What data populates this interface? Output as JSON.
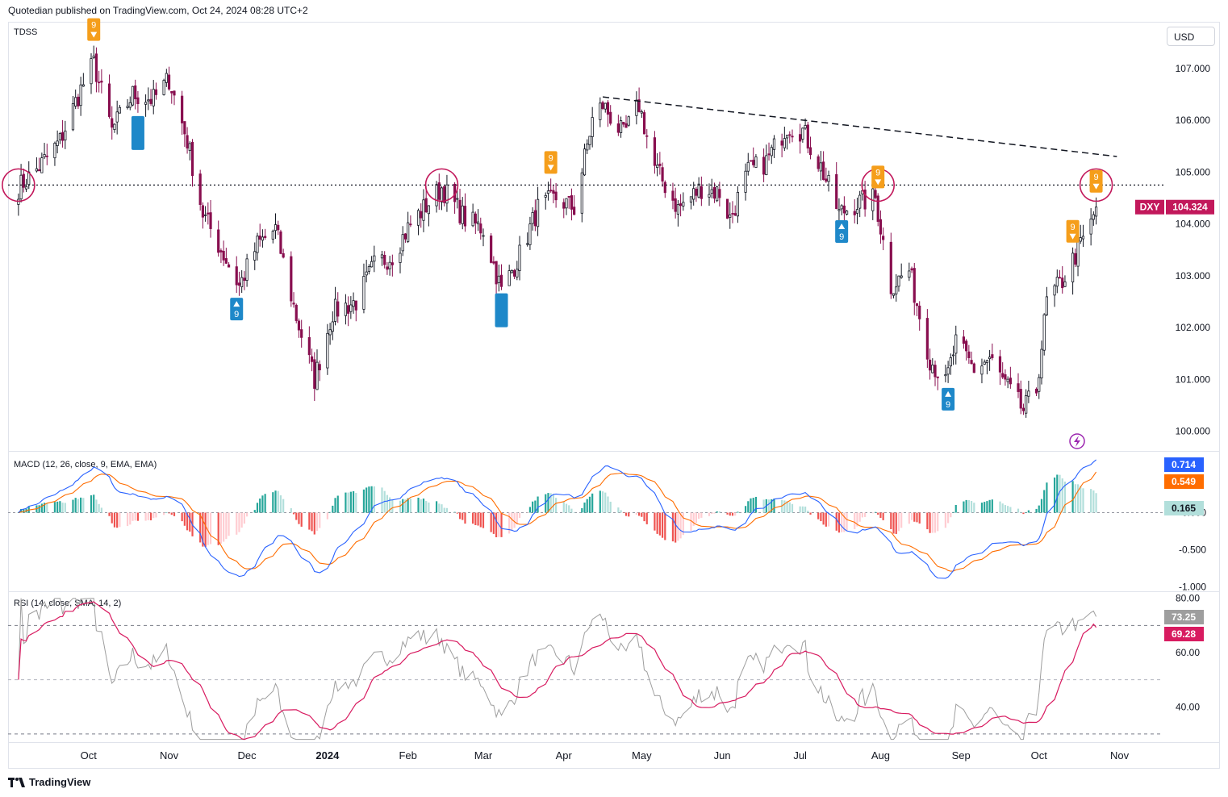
{
  "header": {
    "text": "Quotedian published on TradingView.com, Oct 24, 2024 08:28 UTC+2"
  },
  "currency_button": "USD",
  "footer": {
    "brand": "TradingView",
    "logo_text": "TV"
  },
  "colors": {
    "up": "#131722",
    "down": "#880e4f",
    "blue_tdss": "#1e88c9",
    "orange_tdss": "#f59e1b",
    "macd": "#2962ff",
    "signal": "#ff6d00",
    "rsi": "#9e9e9e",
    "rsi_ma": "#d81b60",
    "circle": "#c2185b",
    "hist_up": "#26a69a",
    "hist_up_light": "#b2dfdb",
    "hist_dn": "#ef5350",
    "hist_dn_light": "#ffcdd2"
  },
  "chart_data": [
    {
      "type": "candlestick",
      "title": "TDSS",
      "symbol": "DXY",
      "last_price": "104.324",
      "y_ticks": [
        "107.000",
        "106.000",
        "105.000",
        "104.000",
        "103.000",
        "102.000",
        "101.000",
        "100.000"
      ],
      "ylim": [
        99.65,
        107.9
      ],
      "horizontal_level": 104.75,
      "trendline": {
        "from": [
          "2024-04-16",
          106.45
        ],
        "to": [
          "2024-10-31",
          105.3
        ]
      },
      "x_ticks": [
        "Oct",
        "Nov",
        "Dec",
        "2024",
        "Feb",
        "Mar",
        "Apr",
        "May",
        "Jun",
        "Jul",
        "Aug",
        "Sep",
        "Oct",
        "Nov"
      ],
      "x_tick_dates": [
        "2023-10-01",
        "2023-11-01",
        "2023-12-01",
        "2024-01-01",
        "2024-02-01",
        "2024-03-01",
        "2024-04-01",
        "2024-05-01",
        "2024-06-01",
        "2024-07-01",
        "2024-08-01",
        "2024-09-01",
        "2024-10-01",
        "2024-11-01"
      ],
      "anchors": [
        [
          "2023-09-04",
          104.7
        ],
        [
          "2023-09-12",
          105.1
        ],
        [
          "2023-09-20",
          105.6
        ],
        [
          "2023-09-28",
          106.6
        ],
        [
          "2023-10-03",
          107.1
        ],
        [
          "2023-10-10",
          105.8
        ],
        [
          "2023-10-18",
          106.5
        ],
        [
          "2023-10-26",
          106.4
        ],
        [
          "2023-11-01",
          106.8
        ],
        [
          "2023-11-08",
          105.6
        ],
        [
          "2023-11-14",
          104.2
        ],
        [
          "2023-11-21",
          103.5
        ],
        [
          "2023-11-28",
          102.8
        ],
        [
          "2023-12-05",
          103.6
        ],
        [
          "2023-12-12",
          103.9
        ],
        [
          "2023-12-20",
          102.2
        ],
        [
          "2023-12-27",
          101.0
        ],
        [
          "2024-01-03",
          102.3
        ],
        [
          "2024-01-12",
          102.5
        ],
        [
          "2024-01-19",
          103.2
        ],
        [
          "2024-01-26",
          103.4
        ],
        [
          "2024-02-02",
          104.0
        ],
        [
          "2024-02-14",
          104.7
        ],
        [
          "2024-02-23",
          104.1
        ],
        [
          "2024-03-01",
          103.9
        ],
        [
          "2024-03-08",
          102.7
        ],
        [
          "2024-03-15",
          103.4
        ],
        [
          "2024-03-22",
          104.3
        ],
        [
          "2024-03-29",
          104.5
        ],
        [
          "2024-04-05",
          104.3
        ],
        [
          "2024-04-12",
          106.0
        ],
        [
          "2024-04-16",
          106.3
        ],
        [
          "2024-04-24",
          105.7
        ],
        [
          "2024-04-30",
          106.3
        ],
        [
          "2024-05-06",
          105.1
        ],
        [
          "2024-05-15",
          104.3
        ],
        [
          "2024-05-24",
          104.7
        ],
        [
          "2024-05-31",
          104.6
        ],
        [
          "2024-06-04",
          104.1
        ],
        [
          "2024-06-11",
          105.0
        ],
        [
          "2024-06-18",
          105.2
        ],
        [
          "2024-06-26",
          105.9
        ],
        [
          "2024-07-02",
          105.8
        ],
        [
          "2024-07-09",
          105.1
        ],
        [
          "2024-07-16",
          104.2
        ],
        [
          "2024-07-23",
          104.4
        ],
        [
          "2024-07-30",
          104.5
        ],
        [
          "2024-08-05",
          102.8
        ],
        [
          "2024-08-12",
          103.1
        ],
        [
          "2024-08-20",
          101.4
        ],
        [
          "2024-08-26",
          100.9
        ],
        [
          "2024-08-30",
          101.7
        ],
        [
          "2024-09-06",
          101.2
        ],
        [
          "2024-09-12",
          101.4
        ],
        [
          "2024-09-18",
          100.9
        ],
        [
          "2024-09-25",
          100.4
        ],
        [
          "2024-09-30",
          100.8
        ],
        [
          "2024-10-04",
          102.5
        ],
        [
          "2024-10-10",
          102.9
        ],
        [
          "2024-10-16",
          103.5
        ],
        [
          "2024-10-21",
          104.0
        ],
        [
          "2024-10-23",
          104.324
        ]
      ],
      "tdss_markers": [
        {
          "date": "2023-10-03",
          "type": "sell",
          "label": "9"
        },
        {
          "date": "2023-10-20",
          "type": "buy_bar",
          "label": ""
        },
        {
          "date": "2023-11-27",
          "type": "buy",
          "label": "9"
        },
        {
          "date": "2024-03-08",
          "type": "buy_bar",
          "label": ""
        },
        {
          "date": "2024-03-27",
          "type": "sell",
          "label": "9"
        },
        {
          "date": "2024-07-17",
          "type": "buy",
          "label": "9"
        },
        {
          "date": "2024-07-31",
          "type": "sell",
          "label": "9"
        },
        {
          "date": "2024-08-27",
          "type": "buy",
          "label": "9"
        },
        {
          "date": "2024-10-14",
          "type": "sell",
          "label": "9"
        },
        {
          "date": "2024-10-23",
          "type": "sell",
          "label": "9"
        }
      ],
      "circles": [
        "2023-09-04",
        "2024-02-14",
        "2024-07-31",
        "2024-10-23"
      ]
    },
    {
      "type": "line",
      "title": "MACD (12, 26, close, 9, EMA, EMA)",
      "y_ticks": [
        "0.000",
        "-0.500",
        "-1.000"
      ],
      "ylim": [
        -1.05,
        0.8
      ],
      "last_values": {
        "macd": "0.714",
        "signal": "0.549",
        "histogram": "0.165"
      }
    },
    {
      "type": "line",
      "title": "RSI (14, close, SMA, 14, 2)",
      "y_ticks": [
        "80.00",
        "60.00",
        "40.00"
      ],
      "ylim": [
        27,
        82
      ],
      "bands": [
        70,
        50,
        30
      ],
      "last_values": {
        "rsi": "73.25",
        "rsi_ma": "69.28"
      }
    }
  ]
}
